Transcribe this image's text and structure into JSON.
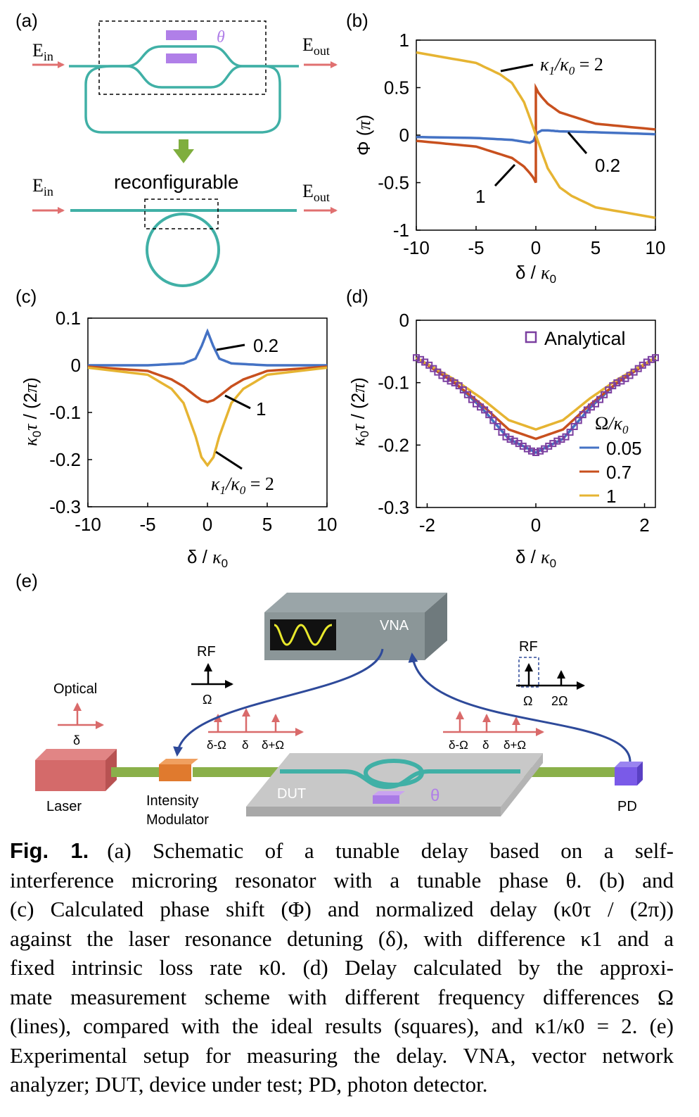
{
  "panels": {
    "a": {
      "label": "(a)",
      "ein": "E",
      "ein_sub": "in",
      "eout": "E",
      "eout_sub": "out",
      "theta": "θ",
      "reconfigurable": "reconfigurable"
    },
    "b": {
      "label": "(b)"
    },
    "c": {
      "label": "(c)"
    },
    "d": {
      "label": "(d)"
    },
    "e": {
      "label": "(e)",
      "vna": "VNA",
      "rf_left": "RF",
      "omega_left": "Ω",
      "optical": "Optical",
      "delta_left": "δ",
      "tones_left": [
        "δ-Ω",
        "δ",
        "δ+Ω"
      ],
      "tones_right": [
        "δ-Ω",
        "δ",
        "δ+Ω"
      ],
      "rf_right": "RF",
      "omega_right": [
        "Ω",
        "2Ω"
      ],
      "laser": "Laser",
      "intensity": "Intensity",
      "modulator": "Modulator",
      "dut": "DUT",
      "theta": "θ",
      "pd": "PD"
    }
  },
  "colors": {
    "blue": "#4472c4",
    "red": "#c8501e",
    "yellow": "#e6b432",
    "teal": "#40b0a6",
    "salmon": "#e07070",
    "purple": "#b07fe8",
    "green": "#8ab04a",
    "navy": "#2e4a9a"
  },
  "chart_data": [
    {
      "panel": "b",
      "type": "line",
      "xlabel": "δ / κ0",
      "ylabel": "Φ (π)",
      "xlim": [
        -10,
        10
      ],
      "ylim": [
        -1,
        1
      ],
      "xticks": [
        "-10",
        "-5",
        "0",
        "5",
        "10"
      ],
      "yticks": [
        "1",
        "0.5",
        "0",
        "-0.5",
        "-1"
      ],
      "series": [
        {
          "name": "0.2",
          "x": [
            -10,
            -5,
            -2,
            -1,
            -0.5,
            -0.2,
            0,
            0.2,
            0.5,
            1,
            2,
            5,
            10
          ],
          "y": [
            -0.02,
            -0.03,
            -0.05,
            -0.07,
            -0.08,
            -0.06,
            0,
            0.03,
            0.05,
            0.05,
            0.04,
            0.03,
            0.01
          ]
        },
        {
          "name": "1",
          "x": [
            -10,
            -5,
            -2,
            -1,
            -0.5,
            -0.2,
            0,
            0.001,
            0.2,
            0.5,
            1,
            2,
            5,
            10
          ],
          "y": [
            -0.06,
            -0.12,
            -0.24,
            -0.33,
            -0.4,
            -0.45,
            -0.5,
            0.5,
            0.45,
            0.4,
            0.33,
            0.24,
            0.12,
            0.06
          ]
        },
        {
          "name": "κ1/κ0 = 2",
          "x": [
            -10,
            -5,
            -3,
            -2,
            -1,
            -0.5,
            0,
            0.5,
            1,
            2,
            3,
            5,
            10
          ],
          "y": [
            0.87,
            0.76,
            0.64,
            0.55,
            0.35,
            0.18,
            0,
            -0.18,
            -0.35,
            -0.55,
            -0.64,
            -0.76,
            -0.87
          ]
        }
      ],
      "annotations": [
        "κ1/κ0 = 2",
        "0.2",
        "1"
      ]
    },
    {
      "panel": "c",
      "type": "line",
      "xlabel": "δ / κ0",
      "ylabel": "κ0τ / (2π)",
      "xlim": [
        -10,
        10
      ],
      "ylim": [
        -0.3,
        0.1
      ],
      "xticks": [
        "-10",
        "-5",
        "0",
        "5",
        "10"
      ],
      "yticks": [
        "0.1",
        "0",
        "-0.1",
        "-0.2",
        "-0.3"
      ],
      "series": [
        {
          "name": "0.2",
          "x": [
            -10,
            -5,
            -2,
            -1,
            -0.5,
            0,
            0.5,
            1,
            2,
            5,
            10
          ],
          "y": [
            0,
            0,
            0.004,
            0.014,
            0.04,
            0.072,
            0.04,
            0.014,
            0.004,
            0,
            0
          ]
        },
        {
          "name": "1",
          "x": [
            -10,
            -5,
            -3,
            -2,
            -1,
            -0.5,
            0,
            0.5,
            1,
            2,
            3,
            5,
            10
          ],
          "y": [
            -0.003,
            -0.012,
            -0.03,
            -0.045,
            -0.065,
            -0.074,
            -0.078,
            -0.074,
            -0.065,
            -0.045,
            -0.03,
            -0.012,
            -0.003
          ]
        },
        {
          "name": "κ1/κ0 = 2",
          "x": [
            -10,
            -5,
            -3,
            -2,
            -1,
            -0.5,
            0,
            0.5,
            1,
            2,
            3,
            5,
            10
          ],
          "y": [
            -0.005,
            -0.02,
            -0.05,
            -0.08,
            -0.15,
            -0.195,
            -0.212,
            -0.195,
            -0.15,
            -0.08,
            -0.05,
            -0.02,
            -0.005
          ]
        }
      ],
      "annotations": [
        "0.2",
        "1",
        "κ1/κ0 = 2"
      ]
    },
    {
      "panel": "d",
      "type": "line",
      "xlabel": "δ / κ0",
      "ylabel": "κ0τ / (2π)",
      "xlim": [
        -2.2,
        2.2
      ],
      "ylim": [
        -0.3,
        0
      ],
      "xticks": [
        "-2",
        "0",
        "2"
      ],
      "yticks": [
        "0",
        "-0.1",
        "-0.2",
        "-0.3"
      ],
      "legend_title": "Ω/κ0",
      "legend_placement": "right",
      "series": [
        {
          "name": "0.05",
          "x": [
            -2.2,
            -1.5,
            -1,
            -0.5,
            0,
            0.5,
            1,
            1.5,
            2.2
          ],
          "y": [
            -0.06,
            -0.1,
            -0.14,
            -0.19,
            -0.212,
            -0.19,
            -0.14,
            -0.1,
            -0.06
          ]
        },
        {
          "name": "0.7",
          "x": [
            -2.2,
            -1.5,
            -1,
            -0.5,
            0,
            0.5,
            1,
            1.5,
            2.2
          ],
          "y": [
            -0.06,
            -0.1,
            -0.135,
            -0.175,
            -0.19,
            -0.175,
            -0.135,
            -0.1,
            -0.06
          ]
        },
        {
          "name": "1",
          "x": [
            -2.2,
            -1.5,
            -1,
            -0.5,
            0,
            0.5,
            1,
            1.5,
            2.2
          ],
          "y": [
            -0.06,
            -0.095,
            -0.125,
            -0.16,
            -0.175,
            -0.16,
            -0.125,
            -0.095,
            -0.06
          ]
        },
        {
          "name": "Analytical",
          "marker": "square",
          "x": [
            -2.2,
            -1.5,
            -1,
            -0.5,
            0,
            0.5,
            1,
            1.5,
            2.2
          ],
          "y": [
            -0.06,
            -0.1,
            -0.14,
            -0.19,
            -0.212,
            -0.19,
            -0.14,
            -0.1,
            -0.06
          ]
        }
      ]
    }
  ],
  "caption": {
    "label": "Fig. 1.",
    "lines": [
      "(a) Schematic of a tunable delay based on a self-",
      "interference microring resonator with a tunable phase θ. (b) and",
      "(c) Calculated phase shift (Φ) and normalized delay (κ0τ / (2π))",
      "against the laser resonance detuning (δ), with difference κ1 and a",
      "fixed intrinsic loss rate κ0. (d) Delay calculated by the approxi-",
      "mate measurement scheme with different frequency differences Ω",
      "(lines), compared with the ideal results (squares), and κ1/κ0 = 2. (e)",
      "Experimental setup for measuring the delay. VNA, vector network",
      "analyzer; DUT, device under test; PD, photon detector."
    ]
  }
}
